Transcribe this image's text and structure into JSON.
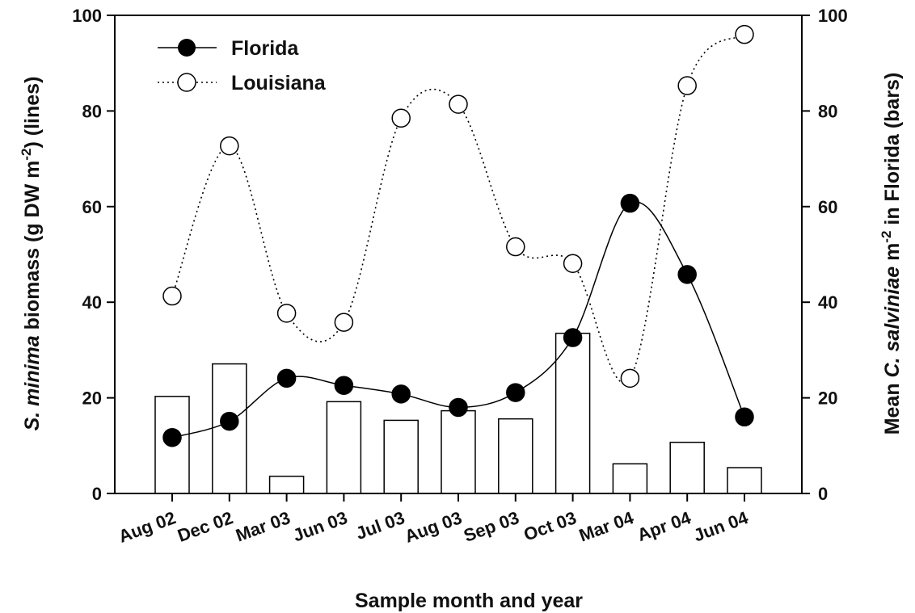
{
  "chart_data": {
    "type": "bar+line",
    "categories": [
      "Aug 02",
      "Dec 02",
      "Mar 03",
      "Jun 03",
      "Jul 03",
      "Aug 03",
      "Sep 03",
      "Oct 03",
      "Mar 04",
      "Apr 04",
      "Jun 04"
    ],
    "xlabel": "Sample month and year",
    "ylabel_left": {
      "species": "S. minima",
      "text": " biomass (g DW m",
      "sup": "-2",
      "tail": ") (lines)"
    },
    "ylabel_right": {
      "prefix": "Mean ",
      "species": "C. salviniae",
      "text": " m",
      "sup": "-2",
      "tail": " in Florida (bars)"
    },
    "ylim_left": [
      0,
      100
    ],
    "ylim_right": [
      0,
      100
    ],
    "yticks": [
      "0",
      "20",
      "40",
      "60",
      "80",
      "100"
    ],
    "bars": {
      "axis": "right",
      "fill": "#ffffff",
      "stroke": "#000000",
      "values": [
        20.3,
        27.1,
        3.6,
        19.2,
        15.3,
        17.3,
        15.6,
        33.5,
        6.2,
        10.7,
        5.4
      ]
    },
    "series": [
      {
        "name": "Florida",
        "axis": "left",
        "line_style": "solid",
        "marker": "filled-circle",
        "values": [
          11.7,
          15.1,
          24.1,
          22.6,
          20.8,
          18.0,
          21.1,
          32.6,
          60.7,
          45.8,
          16.0
        ]
      },
      {
        "name": "Louisiana",
        "axis": "left",
        "line_style": "dotted",
        "marker": "open-circle",
        "values": [
          41.3,
          72.7,
          37.7,
          35.8,
          78.5,
          81.4,
          51.6,
          48.1,
          24.1,
          85.3,
          96.0
        ]
      }
    ],
    "legend_position": "top-left",
    "grid": false
  }
}
